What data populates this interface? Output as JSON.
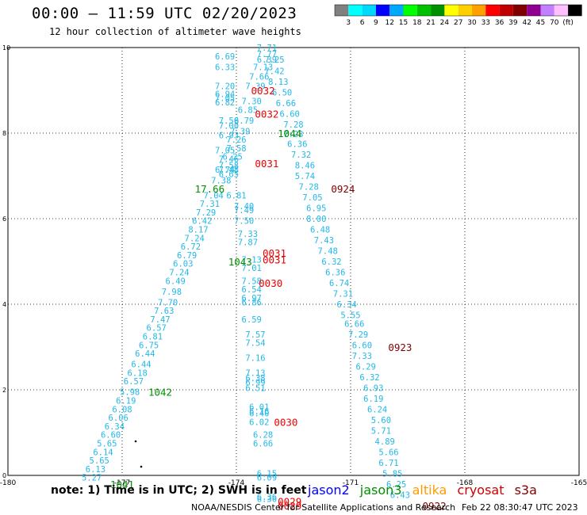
{
  "header": {
    "title": "00:00 – 11:59 UTC 02/20/2023",
    "subtitle": "12 hour collection of altimeter wave heights"
  },
  "legend_scale": {
    "colors": [
      "#808080",
      "#00ffff",
      "#00d8ff",
      "#0000ff",
      "#00a8ff",
      "#00ff00",
      "#00c000",
      "#009000",
      "#ffff00",
      "#ffd000",
      "#ffa000",
      "#ff0000",
      "#c00000",
      "#800000",
      "#900090",
      "#c080ff",
      "#ffc0ff",
      "#000000"
    ],
    "labels": [
      "3",
      "6",
      "9",
      "12",
      "15",
      "18",
      "21",
      "24",
      "27",
      "30",
      "33",
      "36",
      "39",
      "42",
      "45",
      "70",
      "(ft)"
    ]
  },
  "footer": {
    "note": "note:  1) Time is in UTC;  2) SWH is in feet",
    "satellites": [
      {
        "name": "jason2",
        "color": "#0000ff"
      },
      {
        "name": "jason3",
        "color": "#009000"
      },
      {
        "name": "altika",
        "color": "#ff9900"
      },
      {
        "name": "cryosat",
        "color": "#cc0000"
      },
      {
        "name": "s3a",
        "color": "#800000"
      }
    ],
    "credit": "NOAA/NESDIS Center for Satellite Applications and Research",
    "timestamp": "Feb 22 08:30:47 UTC 2023"
  },
  "chart_data": {
    "type": "scatter",
    "title": "00:00 – 11:59 UTC 02/20/2023",
    "xlim": [
      -180,
      -165
    ],
    "ylim": [
      0,
      10
    ],
    "xticks": [
      "-180",
      "-177",
      "-174",
      "-171",
      "-168",
      "-165"
    ],
    "yticks": [
      "0",
      "2",
      "4",
      "6",
      "8",
      "10"
    ],
    "grid": true,
    "colors": {
      "wave": "#22b8e8",
      "jason3": "#009000",
      "cryosat": "#ee0000",
      "s3a": "#800000"
    },
    "wave_heights": [
      {
        "x": -174.3,
        "y": 9.8,
        "v": "6.69"
      },
      {
        "x": -174.3,
        "y": 9.55,
        "v": "6.33"
      },
      {
        "x": -174.3,
        "y": 9.1,
        "v": "7.20"
      },
      {
        "x": -174.3,
        "y": 8.92,
        "v": "6.94"
      },
      {
        "x": -174.3,
        "y": 8.82,
        "v": "7.05"
      },
      {
        "x": -174.3,
        "y": 8.72,
        "v": "6.82"
      },
      {
        "x": -174.2,
        "y": 8.3,
        "v": "7.50"
      },
      {
        "x": -174.2,
        "y": 8.18,
        "v": "7.00"
      },
      {
        "x": -174.2,
        "y": 7.95,
        "v": "6.93"
      },
      {
        "x": -174.3,
        "y": 7.6,
        "v": "7.05"
      },
      {
        "x": -174.2,
        "y": 7.4,
        "v": "7.46"
      },
      {
        "x": -174.3,
        "y": 7.15,
        "v": "6.74"
      },
      {
        "x": -174.4,
        "y": 6.9,
        "v": "7.38"
      },
      {
        "x": -174.6,
        "y": 6.55,
        "v": "7.04"
      },
      {
        "x": -174.7,
        "y": 6.35,
        "v": "7.31"
      },
      {
        "x": -174.8,
        "y": 6.15,
        "v": "7.29"
      },
      {
        "x": -174.9,
        "y": 5.95,
        "v": "6.42"
      },
      {
        "x": -175.0,
        "y": 5.75,
        "v": "8.17"
      },
      {
        "x": -175.1,
        "y": 5.55,
        "v": "7.24"
      },
      {
        "x": -175.2,
        "y": 5.35,
        "v": "6.72"
      },
      {
        "x": -175.3,
        "y": 5.15,
        "v": "6.79"
      },
      {
        "x": -175.4,
        "y": 4.95,
        "v": "6.03"
      },
      {
        "x": -175.5,
        "y": 4.75,
        "v": "7.24"
      },
      {
        "x": -175.6,
        "y": 4.55,
        "v": "6.49"
      },
      {
        "x": -175.7,
        "y": 4.3,
        "v": "7.98"
      },
      {
        "x": -175.8,
        "y": 4.05,
        "v": "7.70"
      },
      {
        "x": -175.9,
        "y": 3.85,
        "v": "7.63"
      },
      {
        "x": -176.0,
        "y": 3.65,
        "v": "7.47"
      },
      {
        "x": -176.1,
        "y": 3.45,
        "v": "6.57"
      },
      {
        "x": -176.2,
        "y": 3.25,
        "v": "6.81"
      },
      {
        "x": -176.3,
        "y": 3.05,
        "v": "6.75"
      },
      {
        "x": -176.4,
        "y": 2.85,
        "v": "6.44"
      },
      {
        "x": -176.5,
        "y": 2.6,
        "v": "6.44"
      },
      {
        "x": -176.6,
        "y": 2.4,
        "v": "6.18"
      },
      {
        "x": -176.7,
        "y": 2.2,
        "v": "6.57"
      },
      {
        "x": -176.8,
        "y": 1.95,
        "v": "5.98"
      },
      {
        "x": -176.9,
        "y": 1.75,
        "v": "6.19"
      },
      {
        "x": -177.0,
        "y": 1.55,
        "v": "6.08"
      },
      {
        "x": -177.1,
        "y": 1.35,
        "v": "6.06"
      },
      {
        "x": -177.2,
        "y": 1.15,
        "v": "6.34"
      },
      {
        "x": -177.3,
        "y": 0.95,
        "v": "6.60"
      },
      {
        "x": -177.4,
        "y": 0.75,
        "v": "5.65"
      },
      {
        "x": -177.5,
        "y": 0.55,
        "v": "6.14"
      },
      {
        "x": -177.6,
        "y": 0.35,
        "v": "5.65"
      },
      {
        "x": -177.7,
        "y": 0.15,
        "v": "6.13"
      },
      {
        "x": -177.8,
        "y": -0.05,
        "v": "5.27"
      },
      {
        "x": -173.2,
        "y": 10.0,
        "v": "7.71"
      },
      {
        "x": -173.2,
        "y": 9.85,
        "v": "7.77"
      },
      {
        "x": -173.2,
        "y": 9.72,
        "v": "6.39"
      },
      {
        "x": -173.0,
        "y": 9.72,
        "v": "7.25"
      },
      {
        "x": -173.3,
        "y": 9.55,
        "v": "7.13"
      },
      {
        "x": -173.0,
        "y": 9.45,
        "v": "7.42"
      },
      {
        "x": -173.4,
        "y": 9.32,
        "v": "7.66"
      },
      {
        "x": -172.9,
        "y": 9.2,
        "v": "8.13"
      },
      {
        "x": -173.5,
        "y": 9.1,
        "v": "7.39"
      },
      {
        "x": -172.8,
        "y": 8.95,
        "v": "6.50"
      },
      {
        "x": -173.6,
        "y": 8.75,
        "v": "7.30"
      },
      {
        "x": -172.7,
        "y": 8.7,
        "v": "6.66"
      },
      {
        "x": -173.7,
        "y": 8.55,
        "v": "6.85"
      },
      {
        "x": -172.6,
        "y": 8.45,
        "v": "6.60"
      },
      {
        "x": -173.8,
        "y": 8.3,
        "v": "6.79"
      },
      {
        "x": -172.5,
        "y": 8.2,
        "v": "7.28"
      },
      {
        "x": -173.9,
        "y": 8.05,
        "v": "7.39"
      },
      {
        "x": -172.5,
        "y": 7.98,
        "v": "7.23"
      },
      {
        "x": -174.0,
        "y": 7.85,
        "v": "7.26"
      },
      {
        "x": -172.4,
        "y": 7.75,
        "v": "6.36"
      },
      {
        "x": -174.0,
        "y": 7.65,
        "v": "7.58"
      },
      {
        "x": -172.3,
        "y": 7.5,
        "v": "7.32"
      },
      {
        "x": -174.1,
        "y": 7.45,
        "v": "6.25"
      },
      {
        "x": -174.2,
        "y": 7.25,
        "v": "7.58"
      },
      {
        "x": -174.2,
        "y": 7.15,
        "v": "7.48"
      },
      {
        "x": -174.2,
        "y": 7.05,
        "v": "6.65"
      },
      {
        "x": -172.2,
        "y": 7.25,
        "v": "8.46"
      },
      {
        "x": -172.2,
        "y": 7.0,
        "v": "5.74"
      },
      {
        "x": -172.1,
        "y": 6.75,
        "v": "7.28"
      },
      {
        "x": -174.0,
        "y": 6.55,
        "v": "6.81"
      },
      {
        "x": -172.0,
        "y": 6.5,
        "v": "7.05"
      },
      {
        "x": -171.9,
        "y": 6.25,
        "v": "6.95"
      },
      {
        "x": -173.8,
        "y": 6.3,
        "v": "7.40"
      },
      {
        "x": -173.8,
        "y": 6.2,
        "v": "7.49"
      },
      {
        "x": -171.9,
        "y": 6.0,
        "v": "8.00"
      },
      {
        "x": -173.8,
        "y": 5.95,
        "v": "7.50"
      },
      {
        "x": -171.8,
        "y": 5.75,
        "v": "6.48"
      },
      {
        "x": -173.7,
        "y": 5.65,
        "v": "7.33"
      },
      {
        "x": -171.7,
        "y": 5.5,
        "v": "7.43"
      },
      {
        "x": -173.7,
        "y": 5.45,
        "v": "7.87"
      },
      {
        "x": -171.6,
        "y": 5.25,
        "v": "7.48"
      },
      {
        "x": -171.5,
        "y": 5.0,
        "v": "6.32"
      },
      {
        "x": -173.6,
        "y": 5.05,
        "v": "7.13"
      },
      {
        "x": -173.6,
        "y": 4.85,
        "v": "7.01"
      },
      {
        "x": -171.4,
        "y": 4.75,
        "v": "6.36"
      },
      {
        "x": -171.3,
        "y": 4.5,
        "v": "6.74"
      },
      {
        "x": -173.6,
        "y": 4.55,
        "v": "7.58"
      },
      {
        "x": -173.6,
        "y": 4.35,
        "v": "6.54"
      },
      {
        "x": -171.2,
        "y": 4.25,
        "v": "7.31"
      },
      {
        "x": -173.6,
        "y": 4.15,
        "v": "6.97"
      },
      {
        "x": -173.6,
        "y": 4.05,
        "v": "6.86"
      },
      {
        "x": -171.1,
        "y": 4.0,
        "v": "6.34"
      },
      {
        "x": -171.0,
        "y": 3.75,
        "v": "5.55"
      },
      {
        "x": -173.6,
        "y": 3.65,
        "v": "6.59"
      },
      {
        "x": -170.9,
        "y": 3.55,
        "v": "6.66"
      },
      {
        "x": -170.8,
        "y": 3.3,
        "v": "7.29"
      },
      {
        "x": -173.5,
        "y": 3.3,
        "v": "7.57"
      },
      {
        "x": -173.5,
        "y": 3.1,
        "v": "7.54"
      },
      {
        "x": -170.7,
        "y": 3.05,
        "v": "6.60"
      },
      {
        "x": -170.7,
        "y": 2.8,
        "v": "7.33"
      },
      {
        "x": -173.5,
        "y": 2.75,
        "v": "7.16"
      },
      {
        "x": -170.6,
        "y": 2.55,
        "v": "6.29"
      },
      {
        "x": -173.5,
        "y": 2.4,
        "v": "7.13"
      },
      {
        "x": -170.5,
        "y": 2.3,
        "v": "6.32"
      },
      {
        "x": -173.5,
        "y": 2.28,
        "v": "6.38"
      },
      {
        "x": -173.5,
        "y": 2.18,
        "v": "6.99"
      },
      {
        "x": -173.5,
        "y": 2.05,
        "v": "6.51"
      },
      {
        "x": -170.4,
        "y": 2.05,
        "v": "6.93"
      },
      {
        "x": -170.4,
        "y": 1.8,
        "v": "6.19"
      },
      {
        "x": -170.3,
        "y": 1.55,
        "v": "6.24"
      },
      {
        "x": -173.4,
        "y": 1.6,
        "v": "6.01"
      },
      {
        "x": -173.4,
        "y": 1.5,
        "v": "6.16"
      },
      {
        "x": -173.4,
        "y": 1.45,
        "v": "6.40"
      },
      {
        "x": -170.2,
        "y": 1.3,
        "v": "5.60"
      },
      {
        "x": -173.4,
        "y": 1.25,
        "v": "6.02"
      },
      {
        "x": -170.2,
        "y": 1.05,
        "v": "5.71"
      },
      {
        "x": -173.3,
        "y": 0.95,
        "v": "6.28"
      },
      {
        "x": -170.1,
        "y": 0.8,
        "v": "4.89"
      },
      {
        "x": -173.3,
        "y": 0.75,
        "v": "6.66"
      },
      {
        "x": -170.0,
        "y": 0.55,
        "v": "5.66"
      },
      {
        "x": -170.0,
        "y": 0.3,
        "v": "6.71"
      },
      {
        "x": -173.2,
        "y": 0.05,
        "v": "6.15"
      },
      {
        "x": -173.2,
        "y": -0.05,
        "v": "6.09"
      },
      {
        "x": -169.9,
        "y": 0.05,
        "v": "5.85"
      },
      {
        "x": -169.8,
        "y": -0.2,
        "v": "6.25"
      },
      {
        "x": -173.2,
        "y": -0.5,
        "v": "6.36"
      },
      {
        "x": -173.2,
        "y": -0.55,
        "v": "6.36"
      },
      {
        "x": -169.7,
        "y": -0.45,
        "v": "6.43"
      }
    ],
    "time_labels": [
      {
        "x": -173.3,
        "y": 9.0,
        "v": "0032",
        "color": "cryosat"
      },
      {
        "x": -173.2,
        "y": 8.45,
        "v": "0032",
        "color": "cryosat"
      },
      {
        "x": -172.6,
        "y": 8.0,
        "v": "1044",
        "color": "jason3"
      },
      {
        "x": -173.2,
        "y": 7.3,
        "v": "0031",
        "color": "cryosat"
      },
      {
        "x": -171.2,
        "y": 6.7,
        "v": "0924",
        "color": "s3a"
      },
      {
        "x": -174.7,
        "y": 6.7,
        "v": "17.66",
        "color": "jason3"
      },
      {
        "x": -173.0,
        "y": 5.2,
        "v": "0031",
        "color": "cryosat"
      },
      {
        "x": -173.0,
        "y": 5.05,
        "v": "0031",
        "color": "cryosat"
      },
      {
        "x": -173.9,
        "y": 5.0,
        "v": "1043",
        "color": "jason3"
      },
      {
        "x": -173.1,
        "y": 4.5,
        "v": "0030",
        "color": "cryosat"
      },
      {
        "x": -169.7,
        "y": 3.0,
        "v": "0923",
        "color": "s3a"
      },
      {
        "x": -176.0,
        "y": 1.95,
        "v": "1042",
        "color": "jason3"
      },
      {
        "x": -172.7,
        "y": 1.25,
        "v": "0030",
        "color": "cryosat"
      },
      {
        "x": -172.6,
        "y": -0.6,
        "v": "0029",
        "color": "cryosat"
      },
      {
        "x": -172.6,
        "y": -0.7,
        "v": "0029",
        "color": "cryosat"
      },
      {
        "x": -168.8,
        "y": -0.7,
        "v": "0922",
        "color": "s3a"
      },
      {
        "x": -177.0,
        "y": -0.2,
        "v": "1041",
        "color": "jason3"
      }
    ]
  }
}
